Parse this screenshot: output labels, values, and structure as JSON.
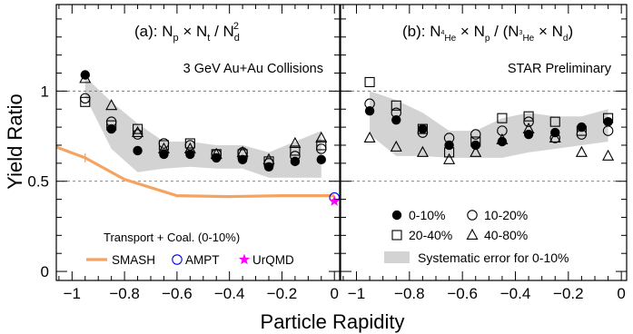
{
  "chart_data": {
    "type": "scatter",
    "ylabel": "Yield Ratio",
    "xlabel": "Particle Rapidity",
    "ylim": [
      -0.05,
      1.48
    ],
    "yticks": [
      0,
      0.5,
      1
    ],
    "ytick_labels": [
      "0",
      "0.5",
      "1"
    ],
    "dashed_reference_lines": [
      0.5,
      1.0
    ],
    "panels": [
      {
        "id": "a",
        "title": {
          "prefix": "(a): N",
          "s1": "p",
          "m1": " × N",
          "s2": "t",
          "m2": " / N",
          "s3": "d",
          "sup3": "2"
        },
        "annotation": "3 GeV Au+Au Collisions",
        "xlim": [
          -1.06,
          0.02
        ],
        "xticks": [
          -1,
          -0.8,
          -0.6,
          -0.4,
          -0.2,
          0
        ],
        "xtick_labels": [
          "−1",
          "−0.8",
          "−0.6",
          "−0.4",
          "−0.2",
          "0"
        ],
        "systematic_band": {
          "x": [
            -0.95,
            -0.85,
            -0.75,
            -0.65,
            -0.55,
            -0.45,
            -0.35,
            -0.25,
            -0.15,
            -0.05
          ],
          "low": [
            0.97,
            0.68,
            0.55,
            0.57,
            0.58,
            0.57,
            0.57,
            0.52,
            0.52,
            0.52
          ],
          "high": [
            1.08,
            0.94,
            0.82,
            0.72,
            0.72,
            0.7,
            0.7,
            0.66,
            0.72,
            0.78
          ]
        },
        "series": [
          {
            "name": "0-10%",
            "marker": "filled-circle",
            "x": [
              -0.95,
              -0.85,
              -0.75,
              -0.65,
              -0.55,
              -0.45,
              -0.35,
              -0.25,
              -0.15,
              -0.05
            ],
            "y": [
              1.09,
              0.79,
              0.67,
              0.65,
              0.65,
              0.63,
              0.62,
              0.58,
              0.61,
              0.62
            ]
          },
          {
            "name": "10-20%",
            "marker": "open-circle",
            "x": [
              -0.95,
              -0.85,
              -0.75,
              -0.65,
              -0.55,
              -0.45,
              -0.35,
              -0.25,
              -0.15,
              -0.05
            ],
            "y": [
              0.96,
              0.83,
              0.76,
              0.71,
              0.7,
              0.65,
              0.66,
              0.6,
              0.64,
              0.68
            ]
          },
          {
            "name": "20-40%",
            "marker": "open-square",
            "x": [
              -0.95,
              -0.85,
              -0.75,
              -0.65,
              -0.55,
              -0.45,
              -0.35,
              -0.25,
              -0.15,
              -0.05
            ],
            "y": [
              0.94,
              0.81,
              0.79,
              0.7,
              0.71,
              0.65,
              0.65,
              0.61,
              0.67,
              0.7
            ]
          },
          {
            "name": "40-80%",
            "marker": "open-triangle",
            "x": [
              -0.95,
              -0.85,
              -0.75,
              -0.65,
              -0.55,
              -0.45,
              -0.35,
              -0.25,
              -0.15,
              -0.05
            ],
            "y": [
              1.07,
              0.92,
              0.77,
              0.68,
              0.68,
              0.65,
              0.66,
              0.62,
              0.71,
              0.74
            ]
          }
        ],
        "models": {
          "legend_title": "Transport + Coal. (0-10%)",
          "items": [
            {
              "name": "SMASH",
              "color": "#f4a460",
              "type": "line",
              "x": [
                -1.06,
                -0.95,
                -0.8,
                -0.6,
                -0.4,
                -0.2,
                0.0
              ],
              "y": [
                0.69,
                0.63,
                0.51,
                0.42,
                0.415,
                0.42,
                0.42
              ]
            },
            {
              "name": "AMPT",
              "color": "#0000ee",
              "type": "open-circle",
              "x": [
                0.0
              ],
              "y": [
                0.41
              ]
            },
            {
              "name": "UrQMD",
              "color": "#ff00ff",
              "type": "star",
              "x": [
                0.0
              ],
              "y": [
                0.39
              ]
            }
          ]
        }
      },
      {
        "id": "b",
        "title": {
          "prefix": "(b): N",
          "s1": "He",
          "s1pre": "4",
          "m1": " × N",
          "s2": "p",
          "m2": " / (N",
          "s3": "He",
          "s3pre": "3",
          "m3": " × N",
          "s4": "d",
          "suffix": ")"
        },
        "annotation": "STAR Preliminary",
        "xlim": [
          -1.06,
          0.02
        ],
        "xticks": [
          -1,
          -0.8,
          -0.6,
          -0.4,
          -0.2,
          0
        ],
        "xtick_labels": [
          "−1",
          "−0.8",
          "−0.6",
          "−0.4",
          "−0.2",
          "0"
        ],
        "systematic_band": {
          "x": [
            -0.95,
            -0.85,
            -0.75,
            -0.65,
            -0.55,
            -0.45,
            -0.35,
            -0.25,
            -0.15,
            -0.05
          ],
          "low": [
            0.76,
            0.64,
            0.64,
            0.63,
            0.63,
            0.63,
            0.66,
            0.68,
            0.7,
            0.72
          ],
          "high": [
            1.0,
            0.95,
            0.88,
            0.78,
            0.78,
            0.85,
            0.88,
            0.86,
            0.86,
            0.9
          ]
        },
        "series": [
          {
            "name": "0-10%",
            "marker": "filled-circle",
            "x": [
              -0.95,
              -0.85,
              -0.75,
              -0.65,
              -0.55,
              -0.45,
              -0.35,
              -0.25,
              -0.15,
              -0.05
            ],
            "y": [
              0.89,
              0.84,
              0.79,
              0.7,
              0.7,
              0.72,
              0.76,
              0.77,
              0.8,
              0.83
            ]
          },
          {
            "name": "10-20%",
            "marker": "open-circle",
            "x": [
              -0.95,
              -0.85,
              -0.75,
              -0.65,
              -0.55,
              -0.45,
              -0.35,
              -0.25,
              -0.15,
              -0.05
            ],
            "y": [
              0.93,
              0.88,
              0.77,
              0.74,
              0.76,
              0.78,
              0.83,
              0.74,
              0.76,
              0.78
            ]
          },
          {
            "name": "20-40%",
            "marker": "open-square",
            "x": [
              -0.95,
              -0.85,
              -0.75,
              -0.65,
              -0.55,
              -0.45,
              -0.35,
              -0.25,
              -0.15,
              -0.05
            ],
            "y": [
              1.05,
              0.92,
              0.79,
              0.66,
              0.72,
              0.85,
              0.86,
              0.83,
              0.78,
              0.85
            ]
          },
          {
            "name": "40-80%",
            "marker": "open-triangle",
            "x": [
              -0.95,
              -0.85,
              -0.75,
              -0.65,
              -0.55,
              -0.45,
              -0.35,
              -0.25,
              -0.15,
              -0.05
            ],
            "y": [
              0.74,
              0.69,
              0.66,
              0.62,
              0.66,
              0.73,
              0.79,
              0.74,
              0.66,
              0.64
            ]
          }
        ],
        "legend": {
          "items": [
            "0-10%",
            "10-20%",
            "20-40%",
            "40-80%"
          ],
          "band_label": "Systematic error for 0-10%"
        }
      }
    ]
  }
}
